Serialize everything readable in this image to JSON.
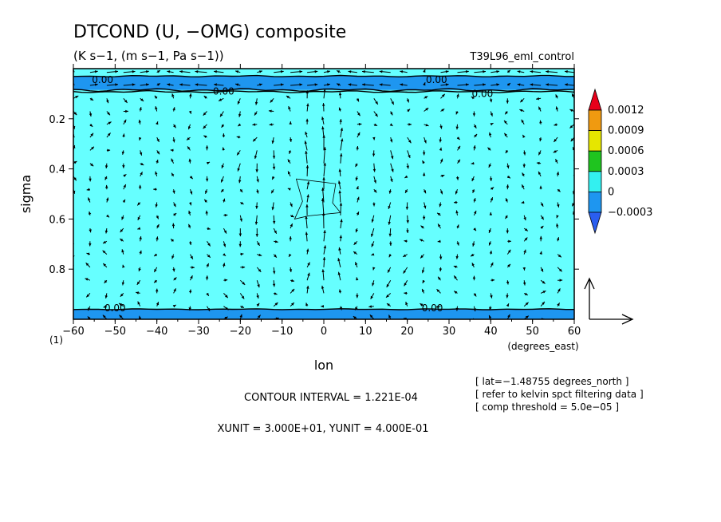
{
  "header": {
    "title": "DTCOND (U, −OMG) composite",
    "subtitle": "(K s−1, (m s−1, Pa s−1))",
    "run_name": "T39L96_eml_control"
  },
  "footer": {
    "contour_interval": "CONTOUR INTERVAL = 1.221E-04",
    "units": "XUNIT = 3.000E+01, YUNIT = 4.000E-01",
    "lat_note": "[ lat=−1.48755 degrees_north ]",
    "refer_note": "[ refer to kelvin spct filtering data ]",
    "threshold_note": "[ comp threshold = 5.0e−05 ]",
    "corner_label": "(1)"
  },
  "colorbar": {
    "labels": [
      "0.0012",
      "0.0009",
      "0.0006",
      "0.0003",
      "0",
      "−0.0003"
    ],
    "colors": [
      "#e8001a",
      "#f09a10",
      "#e6e600",
      "#1fc41f",
      "#33f0f0",
      "#1e96f0",
      "#2a5ef0"
    ]
  },
  "chart_data": {
    "type": "heatmap",
    "title": "DTCOND (U, −OMG) composite",
    "xlabel": "lon",
    "xunits": "(degrees_east)",
    "ylabel": "sigma",
    "xlim": [
      -60,
      60
    ],
    "ylim": [
      1.0,
      0.0
    ],
    "x_ticks": [
      -60,
      -50,
      -40,
      -30,
      -20,
      -10,
      0,
      10,
      20,
      30,
      40,
      50,
      60
    ],
    "x_tick_labels": [
      "−60",
      "−50",
      "−40",
      "−30",
      "−20",
      "−10",
      "0",
      "10",
      "20",
      "30",
      "40",
      "50",
      "60"
    ],
    "y_ticks": [
      0.2,
      0.4,
      0.6,
      0.8
    ],
    "y_tick_labels": [
      "0.2",
      "0.4",
      "0.6",
      "0.8"
    ],
    "contour_interval": 0.0001221,
    "field_colors": {
      "background": "#66ffff",
      "near_zero_negative": "#1e96f0"
    },
    "negative_bands": [
      {
        "name": "top",
        "sigma_range": [
          0.03,
          0.085
        ]
      },
      {
        "name": "bottom",
        "sigma_range": [
          0.96,
          1.0
        ]
      }
    ],
    "contour_labels": [
      {
        "text": "0.00",
        "lon": -53,
        "sigma": 0.045
      },
      {
        "text": "0.00",
        "lon": -24,
        "sigma": 0.09
      },
      {
        "text": "0.00",
        "lon": 27,
        "sigma": 0.045
      },
      {
        "text": "0.00",
        "lon": 38,
        "sigma": 0.1
      },
      {
        "text": "0.00",
        "lon": -50,
        "sigma": 0.955
      },
      {
        "text": "0.00",
        "lon": 26,
        "sigma": 0.955
      }
    ],
    "positive_contour_region": {
      "lon_range": [
        -7,
        4
      ],
      "sigma_range": [
        0.44,
        0.6
      ]
    },
    "vector_reference": {
      "xunit": 30.0,
      "yunit": 0.4
    }
  }
}
